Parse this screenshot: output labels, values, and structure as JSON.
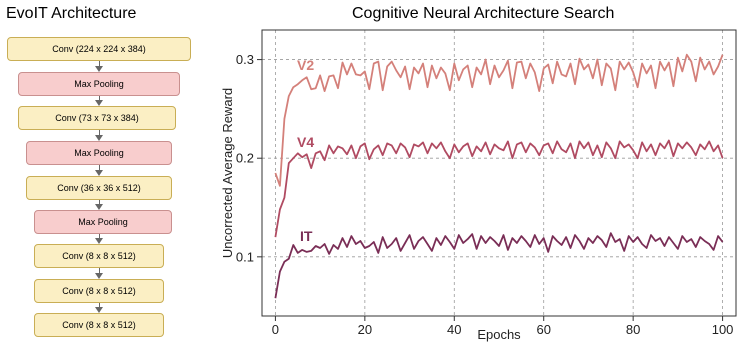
{
  "architecture": {
    "title": "EvoIT Architecture",
    "layers": [
      {
        "kind": "conv",
        "label": "Conv (224 x 224 x 384)"
      },
      {
        "kind": "pool",
        "label": "Max Pooling"
      },
      {
        "kind": "conv",
        "label": "Conv (73 x 73 x 384)"
      },
      {
        "kind": "pool",
        "label": "Max Pooling"
      },
      {
        "kind": "conv",
        "label": "Conv (36 x 36 x 512)"
      },
      {
        "kind": "pool",
        "label": "Max Pooling"
      },
      {
        "kind": "conv",
        "label": "Conv (8 x 8 x 512)"
      },
      {
        "kind": "conv",
        "label": "Conv (8 x 8 x 512)"
      },
      {
        "kind": "conv",
        "label": "Conv (8 x 8 x 512)"
      }
    ],
    "colors": {
      "conv": "#fbefc4",
      "pool": "#f8cdcd",
      "arrow": "#666666"
    }
  },
  "chart_data": {
    "type": "line",
    "title": "Cognitive Neural Architecture Search",
    "xlabel": "Epochs",
    "ylabel": "Uncorrected Average Reward",
    "xlim": [
      -3,
      103
    ],
    "ylim": [
      0.04,
      0.33
    ],
    "xticks": [
      0,
      20,
      40,
      60,
      80,
      100
    ],
    "yticks": [
      0.1,
      0.2,
      0.3
    ],
    "ytick_labels": [
      "0.1",
      "0.2",
      "0.3"
    ],
    "grid": true,
    "grid_style": "dashed",
    "x": [
      0,
      1,
      2,
      3,
      4,
      5,
      6,
      7,
      8,
      9,
      10,
      11,
      12,
      13,
      14,
      15,
      16,
      17,
      18,
      19,
      20,
      21,
      22,
      23,
      24,
      25,
      26,
      27,
      28,
      29,
      30,
      31,
      32,
      33,
      34,
      35,
      36,
      37,
      38,
      39,
      40,
      41,
      42,
      43,
      44,
      45,
      46,
      47,
      48,
      49,
      50,
      51,
      52,
      53,
      54,
      55,
      56,
      57,
      58,
      59,
      60,
      61,
      62,
      63,
      64,
      65,
      66,
      67,
      68,
      69,
      70,
      71,
      72,
      73,
      74,
      75,
      76,
      77,
      78,
      79,
      80,
      81,
      82,
      83,
      84,
      85,
      86,
      87,
      88,
      89,
      90,
      91,
      92,
      93,
      94,
      95,
      96,
      97,
      98,
      99,
      100
    ],
    "series": [
      {
        "name": "V2",
        "color": "#d4807a",
        "values": [
          0.185,
          0.172,
          0.24,
          0.263,
          0.272,
          0.275,
          0.279,
          0.282,
          0.27,
          0.271,
          0.284,
          0.268,
          0.283,
          0.284,
          0.271,
          0.297,
          0.285,
          0.296,
          0.285,
          0.284,
          0.288,
          0.27,
          0.296,
          0.298,
          0.269,
          0.293,
          0.298,
          0.289,
          0.282,
          0.293,
          0.27,
          0.292,
          0.286,
          0.296,
          0.272,
          0.294,
          0.281,
          0.292,
          0.286,
          0.269,
          0.296,
          0.279,
          0.29,
          0.294,
          0.272,
          0.292,
          0.285,
          0.3,
          0.275,
          0.294,
          0.282,
          0.289,
          0.299,
          0.271,
          0.297,
          0.298,
          0.281,
          0.296,
          0.287,
          0.268,
          0.291,
          0.295,
          0.276,
          0.298,
          0.285,
          0.283,
          0.296,
          0.275,
          0.301,
          0.29,
          0.295,
          0.281,
          0.3,
          0.274,
          0.296,
          0.291,
          0.269,
          0.298,
          0.29,
          0.297,
          0.287,
          0.272,
          0.296,
          0.286,
          0.294,
          0.271,
          0.298,
          0.289,
          0.297,
          0.273,
          0.302,
          0.288,
          0.305,
          0.298,
          0.278,
          0.302,
          0.29,
          0.298,
          0.285,
          0.293,
          0.305
        ]
      },
      {
        "name": "V4",
        "color": "#b04b62",
        "values": [
          0.12,
          0.148,
          0.16,
          0.195,
          0.2,
          0.205,
          0.201,
          0.204,
          0.19,
          0.205,
          0.207,
          0.198,
          0.213,
          0.205,
          0.212,
          0.21,
          0.204,
          0.213,
          0.2,
          0.212,
          0.215,
          0.199,
          0.209,
          0.213,
          0.203,
          0.215,
          0.213,
          0.205,
          0.215,
          0.211,
          0.201,
          0.214,
          0.212,
          0.216,
          0.205,
          0.215,
          0.21,
          0.216,
          0.207,
          0.2,
          0.214,
          0.206,
          0.212,
          0.215,
          0.202,
          0.212,
          0.207,
          0.216,
          0.204,
          0.214,
          0.21,
          0.208,
          0.217,
          0.2,
          0.214,
          0.216,
          0.206,
          0.215,
          0.211,
          0.203,
          0.213,
          0.215,
          0.205,
          0.217,
          0.209,
          0.206,
          0.215,
          0.2,
          0.217,
          0.21,
          0.216,
          0.203,
          0.213,
          0.201,
          0.216,
          0.21,
          0.2,
          0.217,
          0.211,
          0.214,
          0.208,
          0.2,
          0.216,
          0.207,
          0.214,
          0.203,
          0.215,
          0.21,
          0.218,
          0.202,
          0.215,
          0.21,
          0.216,
          0.211,
          0.203,
          0.214,
          0.209,
          0.217,
          0.207,
          0.213,
          0.2
        ]
      },
      {
        "name": "IT",
        "color": "#7a2e56",
        "values": [
          0.058,
          0.085,
          0.095,
          0.098,
          0.112,
          0.104,
          0.107,
          0.105,
          0.106,
          0.111,
          0.109,
          0.113,
          0.103,
          0.112,
          0.108,
          0.119,
          0.11,
          0.121,
          0.113,
          0.116,
          0.109,
          0.111,
          0.115,
          0.104,
          0.12,
          0.109,
          0.113,
          0.119,
          0.106,
          0.114,
          0.122,
          0.108,
          0.116,
          0.12,
          0.113,
          0.106,
          0.119,
          0.112,
          0.121,
          0.115,
          0.108,
          0.122,
          0.114,
          0.118,
          0.123,
          0.108,
          0.121,
          0.114,
          0.12,
          0.116,
          0.111,
          0.122,
          0.107,
          0.119,
          0.114,
          0.121,
          0.116,
          0.11,
          0.122,
          0.113,
          0.119,
          0.105,
          0.121,
          0.116,
          0.112,
          0.12,
          0.109,
          0.122,
          0.116,
          0.108,
          0.119,
          0.114,
          0.121,
          0.117,
          0.11,
          0.124,
          0.115,
          0.118,
          0.106,
          0.121,
          0.115,
          0.12,
          0.113,
          0.109,
          0.122,
          0.116,
          0.119,
          0.111,
          0.12,
          0.114,
          0.108,
          0.121,
          0.115,
          0.118,
          0.11,
          0.12,
          0.116,
          0.113,
          0.107,
          0.121,
          0.115
        ]
      }
    ]
  }
}
